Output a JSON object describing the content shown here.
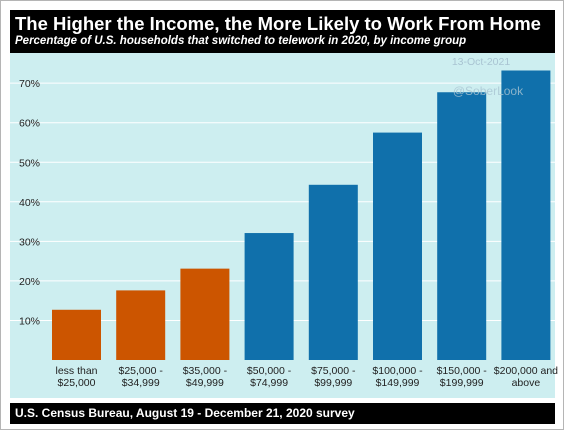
{
  "header": {
    "title": "The Higher the Income, the More Likely to Work From Home",
    "subtitle": "Percentage of U.S. households that switched to telework in 2020, by income group"
  },
  "watermark": {
    "date": "13-Oct-2021",
    "handle": "@SoberLook"
  },
  "footer": {
    "source": "U.S. Census Bureau, August 19 - December 21, 2020 survey"
  },
  "colors": {
    "panel": "#cdeef0",
    "grid": "#ffffff",
    "low_income": "#cc5500",
    "high_income": "#1070ab"
  },
  "chart_data": {
    "type": "bar",
    "categories": [
      [
        "less than",
        "$25,000"
      ],
      [
        "$25,000 -",
        "$34,999"
      ],
      [
        "$35,000 -",
        "$49,999"
      ],
      [
        "$50,000 -",
        "$74,999"
      ],
      [
        "$75,000 -",
        "$99,999"
      ],
      [
        "$100,000 -",
        "$149,999"
      ],
      [
        "$150,000 -",
        "$199,999"
      ],
      [
        "$200,000 and",
        "above"
      ]
    ],
    "values": [
      12.7,
      17.6,
      23.1,
      32.1,
      44.3,
      57.5,
      67.7,
      73.2
    ],
    "bar_colors": [
      "#cc5500",
      "#cc5500",
      "#cc5500",
      "#1070ab",
      "#1070ab",
      "#1070ab",
      "#1070ab",
      "#1070ab"
    ],
    "ylim": [
      0,
      76
    ],
    "yticks": [
      10,
      20,
      30,
      40,
      50,
      60,
      70
    ],
    "ytick_labels": [
      "10%",
      "20%",
      "30%",
      "40%",
      "50%",
      "60%",
      "70%"
    ],
    "grid": true,
    "legend": "none"
  }
}
